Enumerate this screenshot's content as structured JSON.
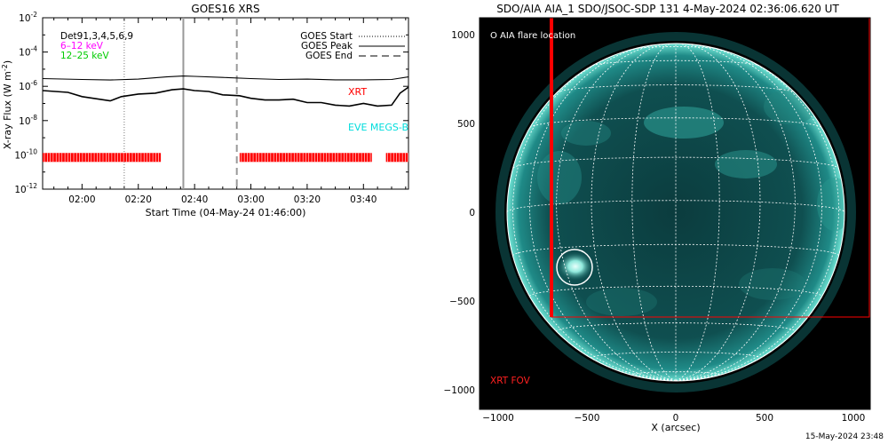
{
  "chart_data": [
    {
      "type": "line",
      "title": "GOES16 XRS",
      "xlabel": "Start Time (04-May-24 01:46:00)",
      "ylabel": "X-ray Flux (W m⁻²)",
      "ylabel_main": "X-ray Flux (W m",
      "ylabel_exp": "-2",
      "ylabel_close": ")",
      "yscale": "log",
      "ylim_exp": [
        -12,
        -2
      ],
      "xlim": [
        "01:46",
        "03:56"
      ],
      "grid": false,
      "x_ticks": [
        "02:00",
        "02:20",
        "02:40",
        "03:00",
        "03:20",
        "03:40"
      ],
      "y_ticks": [
        {
          "exp": -12,
          "label_base": "10",
          "label_exp": "-12"
        },
        {
          "exp": -10,
          "label_base": "10",
          "label_exp": "-10"
        },
        {
          "exp": -8,
          "label_base": "10",
          "label_exp": "-8"
        },
        {
          "exp": -6,
          "label_base": "10",
          "label_exp": "-6"
        },
        {
          "exp": -4,
          "label_base": "10",
          "label_exp": "-4"
        },
        {
          "exp": -2,
          "label_base": "10",
          "label_exp": "-2"
        }
      ],
      "series": [
        {
          "name": "",
          "color": "#000000",
          "x": [
            "01:46",
            "02:00",
            "02:10",
            "02:20",
            "02:30",
            "02:36",
            "02:40",
            "02:50",
            "03:00",
            "03:10",
            "03:20",
            "03:30",
            "03:40",
            "03:50",
            "03:56"
          ],
          "log_y": [
            -5.55,
            -5.6,
            -5.63,
            -5.58,
            -5.45,
            -5.4,
            -5.42,
            -5.48,
            -5.55,
            -5.6,
            -5.58,
            -5.62,
            -5.62,
            -5.6,
            -5.45
          ]
        },
        {
          "name": "",
          "color": "#000000",
          "x": [
            "01:46",
            "01:55",
            "02:00",
            "02:10",
            "02:14",
            "02:20",
            "02:26",
            "02:32",
            "02:36",
            "02:40",
            "02:45",
            "02:50",
            "02:56",
            "03:00",
            "03:05",
            "03:10",
            "03:15",
            "03:20",
            "03:25",
            "03:30",
            "03:35",
            "03:40",
            "03:45",
            "03:50",
            "03:53",
            "03:56"
          ],
          "log_y": [
            -6.25,
            -6.35,
            -6.6,
            -6.85,
            -6.6,
            -6.45,
            -6.4,
            -6.2,
            -6.15,
            -6.25,
            -6.3,
            -6.5,
            -6.55,
            -6.7,
            -6.8,
            -6.8,
            -6.75,
            -6.95,
            -6.95,
            -7.1,
            -7.15,
            -7.0,
            -7.15,
            -7.1,
            -6.4,
            -6.05
          ]
        },
        {
          "name": "EVE MEGS-B",
          "color": "#00dddd",
          "x": [
            "01:46",
            "03:56"
          ],
          "log_y": [
            -12.1,
            -12.1
          ]
        }
      ],
      "legend": {
        "detectors": "Det91,3,4,5,6,9",
        "items": [
          {
            "label": "6–12 keV",
            "color": "#ff00ff"
          },
          {
            "label": "12–25 keV",
            "color": "#00dd00"
          }
        ],
        "events": [
          {
            "label": "GOES Start",
            "style": "dotted"
          },
          {
            "label": "GOES Peak",
            "style": "solid"
          },
          {
            "label": "GOES End",
            "style": "dashed"
          }
        ],
        "placement": "top-left / top-right"
      },
      "event_times": {
        "start": "02:15",
        "peak": "02:36",
        "end": "02:55"
      },
      "labels": {
        "xrt": "XRT",
        "eve": "EVE MEGS-B"
      },
      "xrt_coverage": [
        [
          "01:46",
          "02:28"
        ],
        [
          "02:56",
          "03:43"
        ],
        [
          "03:48",
          "03:56"
        ]
      ],
      "xrt_level_exp": -10.15
    },
    {
      "type": "scatter",
      "title": "SDO/AIA AIA_1 SDO/JSOC-SDP 131  4-May-2024 02:36:06.620 UT",
      "xlabel": "X (arcsec)",
      "ylabel": "",
      "xlim": [
        -1100,
        1100
      ],
      "ylim": [
        -1100,
        1000
      ],
      "x_ticks": [
        -1000,
        -500,
        0,
        500,
        1000
      ],
      "y_ticks": [
        -1000,
        -500,
        0,
        500,
        1000
      ],
      "grid": true,
      "solar_radius_arcsec": 950,
      "grid_spacing_deg": 15,
      "annotations": {
        "flare_label": "O AIA flare location",
        "flare_location": {
          "x": -570,
          "y": -310
        },
        "fov_label": "XRT FOV",
        "fov_x_left": -700,
        "fov_y_bottom": -590
      },
      "colors": {
        "disk": "#0e4d4e",
        "limb": "#5ad6c8",
        "grid": "#ffffff",
        "fov": "#ff0000"
      }
    }
  ],
  "footer": {
    "timestamp": "15-May-2024 23:48"
  }
}
